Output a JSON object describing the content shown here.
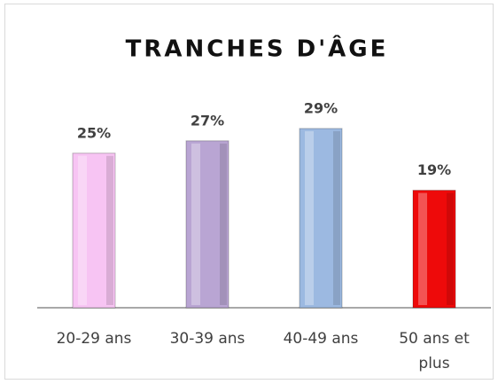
{
  "chart_data": {
    "type": "bar",
    "title": "TRANCHES D'ÂGE",
    "categories": [
      "20-29 ans",
      "30-39 ans",
      "40-49 ans",
      "50 ans et plus"
    ],
    "values": [
      25,
      27,
      29,
      19
    ],
    "value_labels": [
      "25%",
      "27%",
      "29%",
      "19%"
    ],
    "colors": [
      "#f7c4f3",
      "#b9a5d3",
      "#9cb9e1",
      "#ee0a0a"
    ]
  }
}
